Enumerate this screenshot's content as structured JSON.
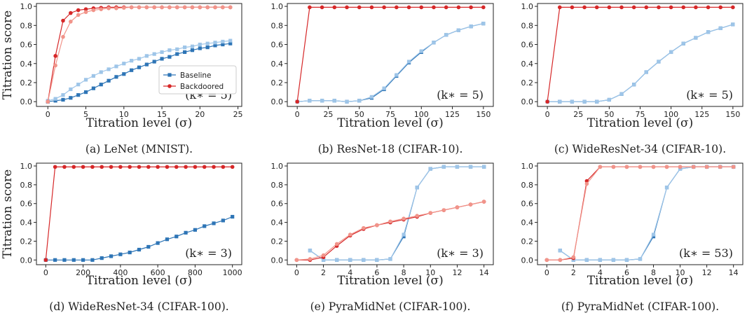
{
  "chart_data": [
    {
      "type": "line",
      "caption": "(a) LeNet (MNIST).",
      "xlabel": "Titration level (σ)",
      "ylabel": "Titration score",
      "annotation": "(k∗ = 5)",
      "xlim": [
        -1.5,
        25.5
      ],
      "ylim": [
        -0.05,
        1.03
      ],
      "xticks": [
        0,
        5,
        10,
        15,
        20,
        25
      ],
      "yticks": [
        0.0,
        0.2,
        0.4,
        0.6,
        0.8,
        1.0
      ],
      "legend": "lower-right",
      "x": [
        0,
        1,
        2,
        3,
        4,
        5,
        6,
        7,
        8,
        9,
        10,
        11,
        12,
        13,
        14,
        15,
        16,
        17,
        18,
        19,
        20,
        21,
        22,
        23,
        24
      ],
      "series": [
        {
          "name": "Baseline",
          "color": "#2e75b6",
          "marker": "square",
          "values": [
            0.0,
            0.01,
            0.02,
            0.04,
            0.07,
            0.1,
            0.14,
            0.18,
            0.22,
            0.26,
            0.29,
            0.33,
            0.36,
            0.39,
            0.42,
            0.45,
            0.47,
            0.5,
            0.52,
            0.54,
            0.56,
            0.57,
            0.59,
            0.6,
            0.61
          ]
        },
        {
          "color": "#9ec5e8",
          "marker": "square",
          "values": [
            0.01,
            0.03,
            0.07,
            0.13,
            0.18,
            0.23,
            0.27,
            0.31,
            0.34,
            0.37,
            0.4,
            0.43,
            0.45,
            0.48,
            0.5,
            0.52,
            0.54,
            0.55,
            0.57,
            0.58,
            0.6,
            0.61,
            0.62,
            0.63,
            0.64
          ]
        },
        {
          "name": "Backdoored",
          "color": "#d62728",
          "marker": "circle",
          "values": [
            0.0,
            0.48,
            0.85,
            0.93,
            0.96,
            0.97,
            0.98,
            0.985,
            0.99,
            0.99,
            0.99,
            0.99,
            0.99,
            0.99,
            0.99,
            0.99,
            0.99,
            0.99,
            0.99,
            0.99,
            0.99,
            0.99,
            0.99,
            0.99,
            0.99
          ]
        },
        {
          "color": "#f1948a",
          "marker": "circle",
          "values": [
            0.0,
            0.38,
            0.68,
            0.84,
            0.91,
            0.94,
            0.96,
            0.97,
            0.98,
            0.98,
            0.985,
            0.99,
            0.99,
            0.99,
            0.99,
            0.99,
            0.99,
            0.99,
            0.99,
            0.99,
            0.99,
            0.99,
            0.99,
            0.99,
            0.99
          ]
        }
      ]
    },
    {
      "type": "line",
      "caption": "(b) ResNet-18 (CIFAR-10).",
      "xlabel": "Titration level (σ)",
      "annotation": "(k∗ = 5)",
      "xlim": [
        -8,
        158
      ],
      "ylim": [
        -0.05,
        1.03
      ],
      "xticks": [
        0,
        25,
        50,
        75,
        100,
        125,
        150
      ],
      "yticks": [
        0.0,
        0.2,
        0.4,
        0.6,
        0.8,
        1.0
      ],
      "x": [
        0,
        10,
        20,
        30,
        40,
        50,
        60,
        70,
        80,
        90,
        100,
        110,
        120,
        130,
        140,
        150
      ],
      "series": [
        {
          "color": "#2e75b6",
          "marker": "square",
          "values": [
            0.0,
            0.01,
            0.01,
            0.01,
            0.0,
            0.01,
            0.04,
            0.13,
            0.27,
            0.41,
            0.52,
            0.62,
            0.7,
            0.75,
            0.79,
            0.82
          ]
        },
        {
          "color": "#9ec5e8",
          "marker": "square",
          "values": [
            0.0,
            0.01,
            0.01,
            0.01,
            0.0,
            0.01,
            0.05,
            0.14,
            0.28,
            0.42,
            0.53,
            0.62,
            0.7,
            0.75,
            0.79,
            0.82
          ]
        },
        {
          "color": "#d62728",
          "marker": "circle",
          "values": [
            0.0,
            0.99,
            0.99,
            0.99,
            0.99,
            0.99,
            0.99,
            0.99,
            0.99,
            0.99,
            0.99,
            0.99,
            0.99,
            0.99,
            0.99,
            0.99
          ]
        }
      ]
    },
    {
      "type": "line",
      "caption": "(c) WideResNet-34 (CIFAR-10).",
      "xlabel": "Titration level (σ)",
      "annotation": "(k∗ = 5)",
      "xlim": [
        -8,
        158
      ],
      "ylim": [
        -0.05,
        1.03
      ],
      "xticks": [
        0,
        25,
        50,
        75,
        100,
        125,
        150
      ],
      "yticks": [
        0.0,
        0.2,
        0.4,
        0.6,
        0.8,
        1.0
      ],
      "x": [
        0,
        10,
        20,
        30,
        40,
        50,
        60,
        70,
        80,
        90,
        100,
        110,
        120,
        130,
        140,
        150
      ],
      "series": [
        {
          "color": "#2e75b6",
          "marker": "square",
          "values": [
            0.0,
            0.0,
            0.0,
            0.0,
            0.0,
            0.02,
            0.08,
            0.18,
            0.31,
            0.42,
            0.52,
            0.61,
            0.67,
            0.73,
            0.77,
            0.81
          ]
        },
        {
          "color": "#9ec5e8",
          "marker": "square",
          "values": [
            0.0,
            0.0,
            0.0,
            0.0,
            0.0,
            0.02,
            0.08,
            0.18,
            0.31,
            0.42,
            0.52,
            0.61,
            0.67,
            0.73,
            0.77,
            0.81
          ]
        },
        {
          "color": "#d62728",
          "marker": "circle",
          "values": [
            0.0,
            0.99,
            0.99,
            0.99,
            0.99,
            0.99,
            0.99,
            0.99,
            0.99,
            0.99,
            0.99,
            0.99,
            0.99,
            0.99,
            0.99,
            0.99
          ]
        }
      ]
    },
    {
      "type": "line",
      "caption": "(d) WideResNet-34 (CIFAR-100).",
      "xlabel": "Titration level (σ)",
      "ylabel": "Titration score",
      "annotation": "(k∗ = 3)",
      "xlim": [
        -50,
        1050
      ],
      "ylim": [
        -0.05,
        1.03
      ],
      "xticks": [
        0,
        200,
        400,
        600,
        800,
        1000
      ],
      "yticks": [
        0.0,
        0.2,
        0.4,
        0.6,
        0.8,
        1.0
      ],
      "x": [
        0,
        50,
        100,
        150,
        200,
        250,
        300,
        350,
        400,
        450,
        500,
        550,
        600,
        650,
        700,
        750,
        800,
        850,
        900,
        950,
        1000
      ],
      "series": [
        {
          "color": "#2e75b6",
          "marker": "square",
          "values": [
            0.0,
            0.0,
            0.0,
            0.0,
            0.0,
            0.0,
            0.02,
            0.04,
            0.06,
            0.08,
            0.11,
            0.14,
            0.18,
            0.22,
            0.25,
            0.29,
            0.32,
            0.36,
            0.39,
            0.42,
            0.46
          ]
        },
        {
          "color": "#d62728",
          "marker": "circle",
          "values": [
            0.0,
            0.99,
            0.99,
            0.99,
            0.99,
            0.99,
            0.99,
            0.99,
            0.99,
            0.99,
            0.99,
            0.99,
            0.99,
            0.99,
            0.99,
            0.99,
            0.99,
            0.99,
            0.99,
            0.99,
            0.99
          ]
        }
      ]
    },
    {
      "type": "line",
      "caption": "(e) PyraMidNet (CIFAR-100).",
      "xlabel": "Titration level (σ)",
      "annotation": "(k∗ = 3)",
      "xlim": [
        -0.7,
        14.7
      ],
      "ylim": [
        -0.05,
        1.03
      ],
      "xticks": [
        0,
        2,
        4,
        6,
        8,
        10,
        12,
        14
      ],
      "yticks": [
        0.0,
        0.2,
        0.4,
        0.6,
        0.8,
        1.0
      ],
      "series": [
        {
          "color": "#2e75b6",
          "marker": "square",
          "x": [
            1,
            2,
            3,
            4,
            5,
            6,
            7,
            8,
            9,
            10,
            11,
            12,
            13,
            14
          ],
          "values": [
            0.1,
            0.0,
            0.0,
            0.0,
            0.0,
            0.0,
            0.01,
            0.25,
            0.77,
            0.97,
            0.99,
            0.99,
            0.99,
            0.99
          ]
        },
        {
          "color": "#9ec5e8",
          "marker": "square",
          "x": [
            1,
            2,
            3,
            4,
            5,
            6,
            7,
            8,
            9,
            10,
            11,
            12,
            13,
            14
          ],
          "values": [
            0.1,
            0.0,
            0.0,
            0.0,
            0.0,
            0.0,
            0.01,
            0.27,
            0.77,
            0.97,
            0.99,
            0.99,
            0.99,
            0.99
          ]
        },
        {
          "color": "#d62728",
          "marker": "circle",
          "x": [
            0,
            1,
            2,
            3,
            4,
            5,
            6,
            7,
            8,
            9,
            10,
            11,
            12,
            13,
            14
          ],
          "values": [
            0.0,
            0.0,
            0.03,
            0.15,
            0.26,
            0.33,
            0.37,
            0.4,
            0.43,
            0.46,
            0.5,
            0.53,
            0.56,
            0.59,
            0.62
          ]
        },
        {
          "color": "#f1948a",
          "marker": "circle",
          "x": [
            0,
            1,
            2,
            3,
            4,
            5,
            6,
            7,
            8,
            9,
            10,
            11,
            12,
            13,
            14
          ],
          "values": [
            0.0,
            0.01,
            0.05,
            0.17,
            0.27,
            0.34,
            0.37,
            0.41,
            0.44,
            0.47,
            0.5,
            0.53,
            0.56,
            0.59,
            0.62
          ]
        }
      ]
    },
    {
      "type": "line",
      "caption": "(f) PyraMidNet (CIFAR-100).",
      "xlabel": "Titration level (σ)",
      "annotation": "(k∗ = 53)",
      "xlim": [
        -0.7,
        14.7
      ],
      "ylim": [
        -0.05,
        1.03
      ],
      "xticks": [
        0,
        2,
        4,
        6,
        8,
        10,
        12,
        14
      ],
      "yticks": [
        0.0,
        0.2,
        0.4,
        0.6,
        0.8,
        1.0
      ],
      "series": [
        {
          "color": "#2e75b6",
          "marker": "square",
          "x": [
            1,
            2,
            3,
            4,
            5,
            6,
            7,
            8,
            9,
            10,
            11,
            12,
            13,
            14
          ],
          "values": [
            0.1,
            0.0,
            0.0,
            0.0,
            0.0,
            0.0,
            0.01,
            0.25,
            0.77,
            0.97,
            0.99,
            0.99,
            0.99,
            0.99
          ]
        },
        {
          "color": "#9ec5e8",
          "marker": "square",
          "x": [
            1,
            2,
            3,
            4,
            5,
            6,
            7,
            8,
            9,
            10,
            11,
            12,
            13,
            14
          ],
          "values": [
            0.1,
            0.0,
            0.0,
            0.0,
            0.0,
            0.0,
            0.01,
            0.27,
            0.77,
            0.97,
            0.99,
            0.99,
            0.99,
            0.99
          ]
        },
        {
          "color": "#d62728",
          "marker": "circle",
          "x": [
            0,
            1,
            2,
            3,
            4,
            5,
            6,
            7,
            8,
            9,
            10,
            11,
            12,
            13,
            14
          ],
          "values": [
            0.0,
            0.0,
            0.02,
            0.84,
            0.99,
            0.99,
            0.99,
            0.99,
            0.99,
            0.99,
            0.99,
            0.99,
            0.99,
            0.99,
            0.99
          ]
        },
        {
          "color": "#f1948a",
          "marker": "circle",
          "x": [
            0,
            1,
            2,
            3,
            4,
            5,
            6,
            7,
            8,
            9,
            10,
            11,
            12,
            13,
            14
          ],
          "values": [
            0.0,
            0.0,
            0.03,
            0.81,
            0.99,
            0.99,
            0.99,
            0.99,
            0.99,
            0.99,
            0.99,
            0.99,
            0.99,
            0.99,
            0.99
          ]
        }
      ]
    }
  ]
}
